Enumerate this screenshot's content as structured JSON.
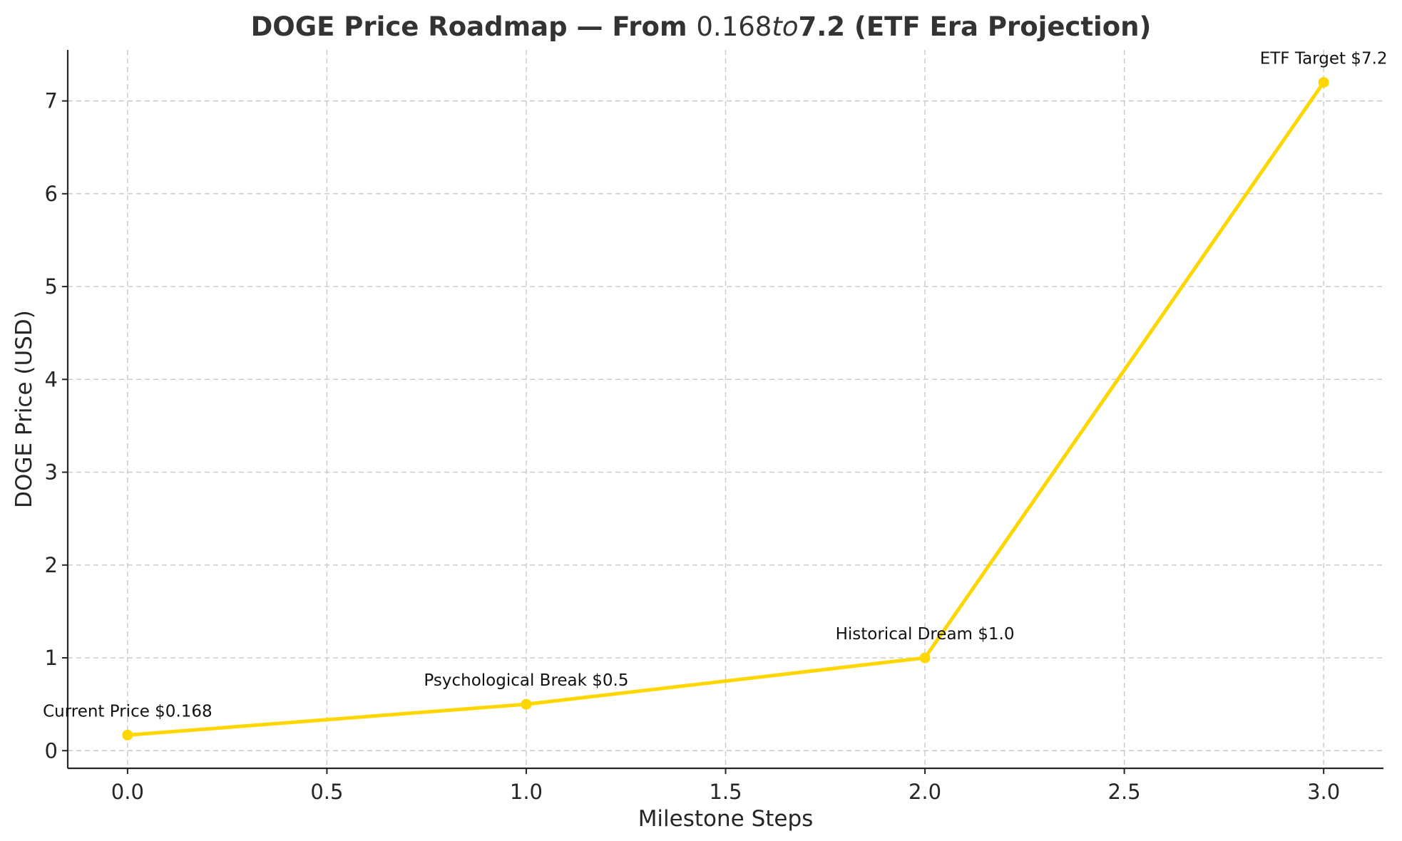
{
  "chart_data": {
    "type": "line",
    "title": "DOGE Price Roadmap — From $0.168 to $7.2 (ETF Era Projection)",
    "title_parts": [
      {
        "text": "DOGE Price Roadmap — From ",
        "style": "bold"
      },
      {
        "text": "0.168",
        "style": "math"
      },
      {
        "text": "to",
        "style": "math-italic"
      },
      {
        "text": "7.2 (ETF Era Projection)",
        "style": "bold"
      }
    ],
    "xlabel": "Milestone Steps",
    "ylabel": "DOGE Price (USD)",
    "xlim": [
      -0.15,
      3.15
    ],
    "ylim": [
      -0.19,
      7.55
    ],
    "x_ticks": [
      0.0,
      0.5,
      1.0,
      1.5,
      2.0,
      2.5,
      3.0
    ],
    "x_tick_labels": [
      "0.0",
      "0.5",
      "1.0",
      "1.5",
      "2.0",
      "2.5",
      "3.0"
    ],
    "y_ticks": [
      0,
      1,
      2,
      3,
      4,
      5,
      6,
      7
    ],
    "y_tick_labels": [
      "0",
      "1",
      "2",
      "3",
      "4",
      "5",
      "6",
      "7"
    ],
    "grid": true,
    "series": [
      {
        "x": [
          0,
          1,
          2,
          3
        ],
        "values": [
          0.168,
          0.5,
          1.0,
          7.2
        ],
        "color": "#FFD700",
        "marker": "circle"
      }
    ],
    "annotations": [
      {
        "x": 0,
        "y": 0.168,
        "text": "Current Price $0.168"
      },
      {
        "x": 1,
        "y": 0.5,
        "text": "Psychological Break $0.5"
      },
      {
        "x": 2,
        "y": 1.0,
        "text": "Historical Dream $1.0"
      },
      {
        "x": 3,
        "y": 7.2,
        "text": "ETF Target $7.2"
      }
    ]
  }
}
